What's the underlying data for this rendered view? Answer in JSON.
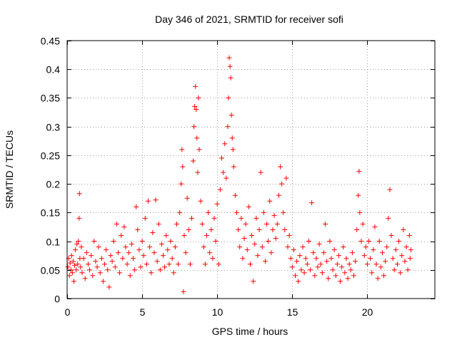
{
  "chart_data": {
    "type": "scatter",
    "title": "Day 346 of 2021, SRMTID for receiver sofi",
    "xlabel": "GPS time / hours",
    "ylabel": "SRMTID / TECUs",
    "xlim": [
      0,
      24.5
    ],
    "ylim": [
      0,
      0.45
    ],
    "xticks": [
      0,
      5,
      10,
      15,
      20
    ],
    "yticks": [
      0,
      0.05,
      0.1,
      0.15,
      0.2,
      0.25,
      0.3,
      0.35,
      0.4,
      0.45
    ],
    "xtick_labels": [
      "0",
      "5",
      "10",
      "15",
      "20"
    ],
    "ytick_labels": [
      "0",
      "0.05",
      "0.1",
      "0.15",
      "0.2",
      "0.25",
      "0.3",
      "0.35",
      "0.4",
      "0.45"
    ],
    "grid": true,
    "marker": "+",
    "marker_color": "#ff0000",
    "series": [
      {
        "name": "sofi",
        "points": [
          [
            0.05,
            0.055
          ],
          [
            0.1,
            0.07
          ],
          [
            0.15,
            0.04
          ],
          [
            0.2,
            0.062
          ],
          [
            0.25,
            0.05
          ],
          [
            0.3,
            0.075
          ],
          [
            0.35,
            0.045
          ],
          [
            0.4,
            0.065
          ],
          [
            0.45,
            0.03
          ],
          [
            0.5,
            0.058
          ],
          [
            0.55,
            0.085
          ],
          [
            0.6,
            0.05
          ],
          [
            0.65,
            0.095
          ],
          [
            0.7,
            0.06
          ],
          [
            0.75,
            0.1
          ],
          [
            0.8,
            0.14
          ],
          [
            0.82,
            0.183
          ],
          [
            0.85,
            0.07
          ],
          [
            0.9,
            0.055
          ],
          [
            0.95,
            0.09
          ],
          [
            1.0,
            0.045
          ],
          [
            1.1,
            0.07
          ],
          [
            1.2,
            0.035
          ],
          [
            1.3,
            0.08
          ],
          [
            1.4,
            0.06
          ],
          [
            1.5,
            0.05
          ],
          [
            1.6,
            0.075
          ],
          [
            1.7,
            0.04
          ],
          [
            1.8,
            0.1
          ],
          [
            1.9,
            0.065
          ],
          [
            2.0,
            0.055
          ],
          [
            2.1,
            0.09
          ],
          [
            2.2,
            0.045
          ],
          [
            2.3,
            0.07
          ],
          [
            2.4,
            0.03
          ],
          [
            2.5,
            0.06
          ],
          [
            2.6,
            0.085
          ],
          [
            2.7,
            0.05
          ],
          [
            2.8,
            0.02
          ],
          [
            2.9,
            0.075
          ],
          [
            3.0,
            0.065
          ],
          [
            3.1,
            0.1
          ],
          [
            3.2,
            0.055
          ],
          [
            3.3,
            0.13
          ],
          [
            3.4,
            0.08
          ],
          [
            3.5,
            0.045
          ],
          [
            3.6,
            0.11
          ],
          [
            3.7,
            0.07
          ],
          [
            3.8,
            0.125
          ],
          [
            3.9,
            0.09
          ],
          [
            4.0,
            0.06
          ],
          [
            4.1,
            0.08
          ],
          [
            4.2,
            0.04
          ],
          [
            4.3,
            0.095
          ],
          [
            4.4,
            0.07
          ],
          [
            4.5,
            0.05
          ],
          [
            4.6,
            0.16
          ],
          [
            4.7,
            0.12
          ],
          [
            4.8,
            0.085
          ],
          [
            4.9,
            0.055
          ],
          [
            5.0,
            0.1
          ],
          [
            5.1,
            0.075
          ],
          [
            5.2,
            0.14
          ],
          [
            5.3,
            0.06
          ],
          [
            5.4,
            0.17
          ],
          [
            5.5,
            0.09
          ],
          [
            5.6,
            0.045
          ],
          [
            5.7,
            0.115
          ],
          [
            5.8,
            0.08
          ],
          [
            5.9,
            0.172
          ],
          [
            6.0,
            0.065
          ],
          [
            6.1,
            0.13
          ],
          [
            6.2,
            0.05
          ],
          [
            6.3,
            0.095
          ],
          [
            6.4,
            0.075
          ],
          [
            6.5,
            0.055
          ],
          [
            6.6,
            0.11
          ],
          [
            6.7,
            0.085
          ],
          [
            6.8,
            0.06
          ],
          [
            6.9,
            0.1
          ],
          [
            7.0,
            0.07
          ],
          [
            7.1,
            0.045
          ],
          [
            7.2,
            0.09
          ],
          [
            7.3,
            0.13
          ],
          [
            7.4,
            0.06
          ],
          [
            7.5,
            0.15
          ],
          [
            7.6,
            0.2
          ],
          [
            7.65,
            0.26
          ],
          [
            7.7,
            0.23
          ],
          [
            7.75,
            0.012
          ],
          [
            7.8,
            0.11
          ],
          [
            7.9,
            0.08
          ],
          [
            8.0,
            0.175
          ],
          [
            8.1,
            0.12
          ],
          [
            8.2,
            0.06
          ],
          [
            8.3,
            0.14
          ],
          [
            8.4,
            0.24
          ],
          [
            8.45,
            0.3
          ],
          [
            8.5,
            0.335
          ],
          [
            8.55,
            0.37
          ],
          [
            8.6,
            0.33
          ],
          [
            8.65,
            0.28
          ],
          [
            8.7,
            0.22
          ],
          [
            8.75,
            0.35
          ],
          [
            8.8,
            0.26
          ],
          [
            8.9,
            0.17
          ],
          [
            9.0,
            0.13
          ],
          [
            9.1,
            0.09
          ],
          [
            9.2,
            0.06
          ],
          [
            9.3,
            0.11
          ],
          [
            9.4,
            0.15
          ],
          [
            9.5,
            0.08
          ],
          [
            9.6,
            0.12
          ],
          [
            9.7,
            0.07
          ],
          [
            9.8,
            0.14
          ],
          [
            9.9,
            0.1
          ],
          [
            10.0,
            0.165
          ],
          [
            10.1,
            0.06
          ],
          [
            10.2,
            0.19
          ],
          [
            10.3,
            0.245
          ],
          [
            10.4,
            0.22
          ],
          [
            10.5,
            0.27
          ],
          [
            10.6,
            0.21
          ],
          [
            10.7,
            0.3
          ],
          [
            10.75,
            0.35
          ],
          [
            10.8,
            0.42
          ],
          [
            10.85,
            0.405
          ],
          [
            10.9,
            0.385
          ],
          [
            10.95,
            0.32
          ],
          [
            11.0,
            0.28
          ],
          [
            11.05,
            0.26
          ],
          [
            11.1,
            0.23
          ],
          [
            11.2,
            0.18
          ],
          [
            11.3,
            0.15
          ],
          [
            11.4,
            0.12
          ],
          [
            11.5,
            0.09
          ],
          [
            11.6,
            0.14
          ],
          [
            11.7,
            0.07
          ],
          [
            11.8,
            0.105
          ],
          [
            11.9,
            0.13
          ],
          [
            12.0,
            0.085
          ],
          [
            12.1,
            0.16
          ],
          [
            12.2,
            0.06
          ],
          [
            12.3,
            0.11
          ],
          [
            12.4,
            0.03
          ],
          [
            12.5,
            0.095
          ],
          [
            12.6,
            0.14
          ],
          [
            12.7,
            0.075
          ],
          [
            12.8,
            0.12
          ],
          [
            12.9,
            0.22
          ],
          [
            13.0,
            0.09
          ],
          [
            13.1,
            0.15
          ],
          [
            13.2,
            0.065
          ],
          [
            13.3,
            0.13
          ],
          [
            13.4,
            0.1
          ],
          [
            13.5,
            0.17
          ],
          [
            13.6,
            0.08
          ],
          [
            13.7,
            0.12
          ],
          [
            13.8,
            0.145
          ],
          [
            13.9,
            0.105
          ],
          [
            14.0,
            0.13
          ],
          [
            14.1,
            0.18
          ],
          [
            14.2,
            0.23
          ],
          [
            14.3,
            0.2
          ],
          [
            14.4,
            0.15
          ],
          [
            14.5,
            0.12
          ],
          [
            14.6,
            0.21
          ],
          [
            14.7,
            0.09
          ],
          [
            14.8,
            0.11
          ],
          [
            14.9,
            0.07
          ],
          [
            15.0,
            0.055
          ],
          [
            15.1,
            0.085
          ],
          [
            15.2,
            0.04
          ],
          [
            15.3,
            0.065
          ],
          [
            15.4,
            0.03
          ],
          [
            15.5,
            0.075
          ],
          [
            15.6,
            0.05
          ],
          [
            15.7,
            0.09
          ],
          [
            15.8,
            0.045
          ],
          [
            15.9,
            0.07
          ],
          [
            16.0,
            0.06
          ],
          [
            16.1,
            0.1
          ],
          [
            16.2,
            0.05
          ],
          [
            16.3,
            0.167
          ],
          [
            16.4,
            0.08
          ],
          [
            16.5,
            0.04
          ],
          [
            16.6,
            0.07
          ],
          [
            16.7,
            0.055
          ],
          [
            16.8,
            0.095
          ],
          [
            16.9,
            0.06
          ],
          [
            17.0,
            0.045
          ],
          [
            17.1,
            0.08
          ],
          [
            17.2,
            0.13
          ],
          [
            17.3,
            0.065
          ],
          [
            17.4,
            0.035
          ],
          [
            17.5,
            0.1
          ],
          [
            17.6,
            0.07
          ],
          [
            17.7,
            0.05
          ],
          [
            17.8,
            0.085
          ],
          [
            17.9,
            0.04
          ],
          [
            18.0,
            0.06
          ],
          [
            18.1,
            0.075
          ],
          [
            18.2,
            0.03
          ],
          [
            18.3,
            0.055
          ],
          [
            18.4,
            0.09
          ],
          [
            18.5,
            0.045
          ],
          [
            18.6,
            0.07
          ],
          [
            18.7,
            0.035
          ],
          [
            18.8,
            0.06
          ],
          [
            18.9,
            0.05
          ],
          [
            19.0,
            0.08
          ],
          [
            19.1,
            0.04
          ],
          [
            19.2,
            0.065
          ],
          [
            19.3,
            0.12
          ],
          [
            19.4,
            0.18
          ],
          [
            19.45,
            0.222
          ],
          [
            19.5,
            0.15
          ],
          [
            19.6,
            0.1
          ],
          [
            19.7,
            0.13
          ],
          [
            19.8,
            0.075
          ],
          [
            19.9,
            0.09
          ],
          [
            20.0,
            0.06
          ],
          [
            20.1,
            0.1
          ],
          [
            20.2,
            0.07
          ],
          [
            20.3,
            0.045
          ],
          [
            20.4,
            0.085
          ],
          [
            20.5,
            0.125
          ],
          [
            20.6,
            0.06
          ],
          [
            20.7,
            0.035
          ],
          [
            20.8,
            0.1
          ],
          [
            20.9,
            0.055
          ],
          [
            21.0,
            0.08
          ],
          [
            21.1,
            0.04
          ],
          [
            21.2,
            0.065
          ],
          [
            21.3,
            0.09
          ],
          [
            21.4,
            0.14
          ],
          [
            21.5,
            0.19
          ],
          [
            21.6,
            0.11
          ],
          [
            21.7,
            0.07
          ],
          [
            21.8,
            0.05
          ],
          [
            21.9,
            0.085
          ],
          [
            22.0,
            0.06
          ],
          [
            22.1,
            0.1
          ],
          [
            22.2,
            0.045
          ],
          [
            22.3,
            0.075
          ],
          [
            22.4,
            0.12
          ],
          [
            22.5,
            0.065
          ],
          [
            22.6,
            0.09
          ],
          [
            22.7,
            0.05
          ],
          [
            22.8,
            0.11
          ],
          [
            22.85,
            0.07
          ],
          [
            22.9,
            0.085
          ]
        ]
      }
    ]
  }
}
